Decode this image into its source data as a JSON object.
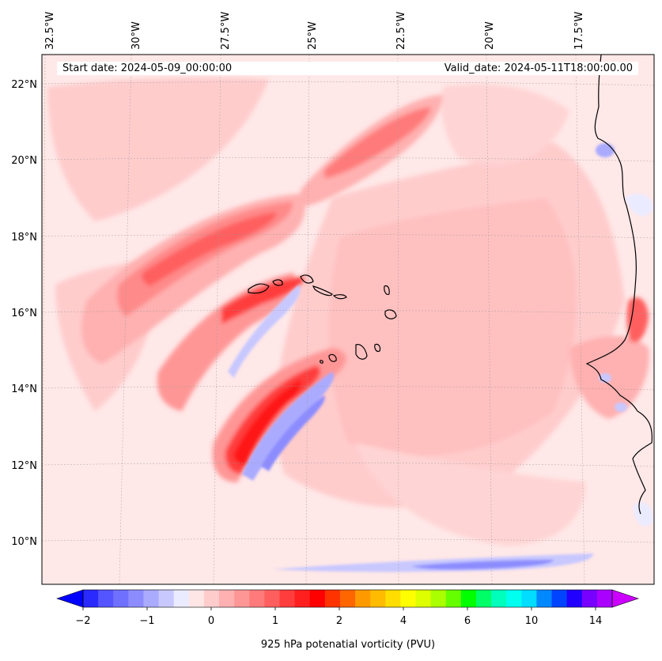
{
  "map": {
    "lon_range": [
      -32.9,
      -15.6
    ],
    "lat_range": [
      8.8,
      22.8
    ],
    "lon_ticks": [
      "32.5°W",
      "30°W",
      "27.5°W",
      "25°W",
      "22.5°W",
      "20°W",
      "17.5°W"
    ],
    "lat_ticks": [
      "22°N",
      "20°N",
      "18°N",
      "16°N",
      "14°N",
      "12°N",
      "10°N"
    ],
    "gridlines": true,
    "features": [
      "Cape Verde islands",
      "West African coastline"
    ]
  },
  "info": {
    "start_date": "Start date: 2024-05-09_00:00:00",
    "valid_date": "Valid_date: 2024-05-11T18:00:00.00"
  },
  "colorbar": {
    "label": "925 hPa potenatial vorticity (PVU)",
    "ticks": [
      "−2",
      "−1",
      "0",
      "1",
      "2",
      "4",
      "6",
      "10",
      "14"
    ],
    "extend": "both",
    "colors": [
      "#0000ff",
      "#2a2aff",
      "#5555ff",
      "#7070ff",
      "#8c8cff",
      "#aaaaff",
      "#c8c8ff",
      "#ebebff",
      "#ffe6e6",
      "#ffcccc",
      "#ffb0b0",
      "#ff9696",
      "#ff7a7a",
      "#ff5e5e",
      "#ff3d3d",
      "#ff1f1f",
      "#ff0000",
      "#ff3300",
      "#ff6600",
      "#ff9900",
      "#ffbb00",
      "#ffdd00",
      "#ffff00",
      "#ddff00",
      "#aaff00",
      "#66ff00",
      "#00ff00",
      "#00ff66",
      "#00ffbb",
      "#00ffee",
      "#00ddff",
      "#0088ff",
      "#0044ff",
      "#2200ff",
      "#7700ff",
      "#aa00ff",
      "#cc00ff"
    ]
  },
  "colors": {
    "background": "#ffe8e8",
    "light_pink": "#ffcccc",
    "pink": "#ffb0b0",
    "salmon": "#ff9696",
    "red": "#ff5e5e",
    "deep_red": "#ff1f1f",
    "light_blue": "#c8c8ff",
    "blue": "#8c8cff",
    "coast": "#000000"
  }
}
